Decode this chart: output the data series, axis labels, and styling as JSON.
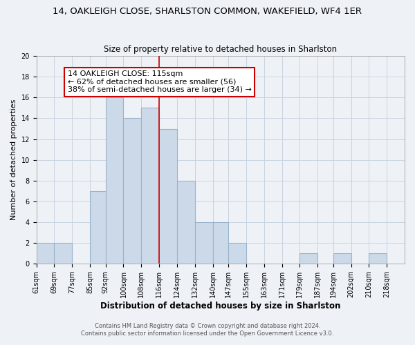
{
  "title_line1": "14, OAKLEIGH CLOSE, SHARLSTON COMMON, WAKEFIELD, WF4 1ER",
  "title_line2": "Size of property relative to detached houses in Sharlston",
  "xlabel": "Distribution of detached houses by size in Sharlston",
  "ylabel": "Number of detached properties",
  "bin_edges": [
    61,
    69,
    77,
    85,
    92,
    100,
    108,
    116,
    124,
    132,
    140,
    147,
    155,
    163,
    171,
    179,
    187,
    194,
    202,
    210,
    218,
    226
  ],
  "bar_heights": [
    2,
    2,
    0,
    7,
    16,
    14,
    15,
    13,
    8,
    4,
    4,
    2,
    0,
    0,
    0,
    1,
    0,
    1,
    0,
    1,
    0
  ],
  "bar_color": "#ccd9e8",
  "bar_edgecolor": "#99b3cc",
  "vline_x": 116,
  "vline_color": "#cc0000",
  "annotation_title": "14 OAKLEIGH CLOSE: 115sqm",
  "annotation_line1": "← 62% of detached houses are smaller (56)",
  "annotation_line2": "38% of semi-detached houses are larger (34) →",
  "annotation_box_edgecolor": "#cc0000",
  "annotation_box_facecolor": "#ffffff",
  "ylim": [
    0,
    20
  ],
  "yticks": [
    0,
    2,
    4,
    6,
    8,
    10,
    12,
    14,
    16,
    18,
    20
  ],
  "tick_labels": [
    "61sqm",
    "69sqm",
    "77sqm",
    "85sqm",
    "92sqm",
    "100sqm",
    "108sqm",
    "116sqm",
    "124sqm",
    "132sqm",
    "140sqm",
    "147sqm",
    "155sqm",
    "163sqm",
    "171sqm",
    "179sqm",
    "187sqm",
    "194sqm",
    "202sqm",
    "210sqm",
    "218sqm"
  ],
  "footer_line1": "Contains HM Land Registry data © Crown copyright and database right 2024.",
  "footer_line2": "Contains public sector information licensed under the Open Government Licence v3.0.",
  "grid_color": "#c8d4e0",
  "bg_color": "#eef2f7",
  "title1_fontsize": 9.5,
  "title2_fontsize": 8.5,
  "xlabel_fontsize": 8.5,
  "ylabel_fontsize": 8,
  "tick_fontsize": 7,
  "footer_fontsize": 6,
  "ann_fontsize": 8
}
